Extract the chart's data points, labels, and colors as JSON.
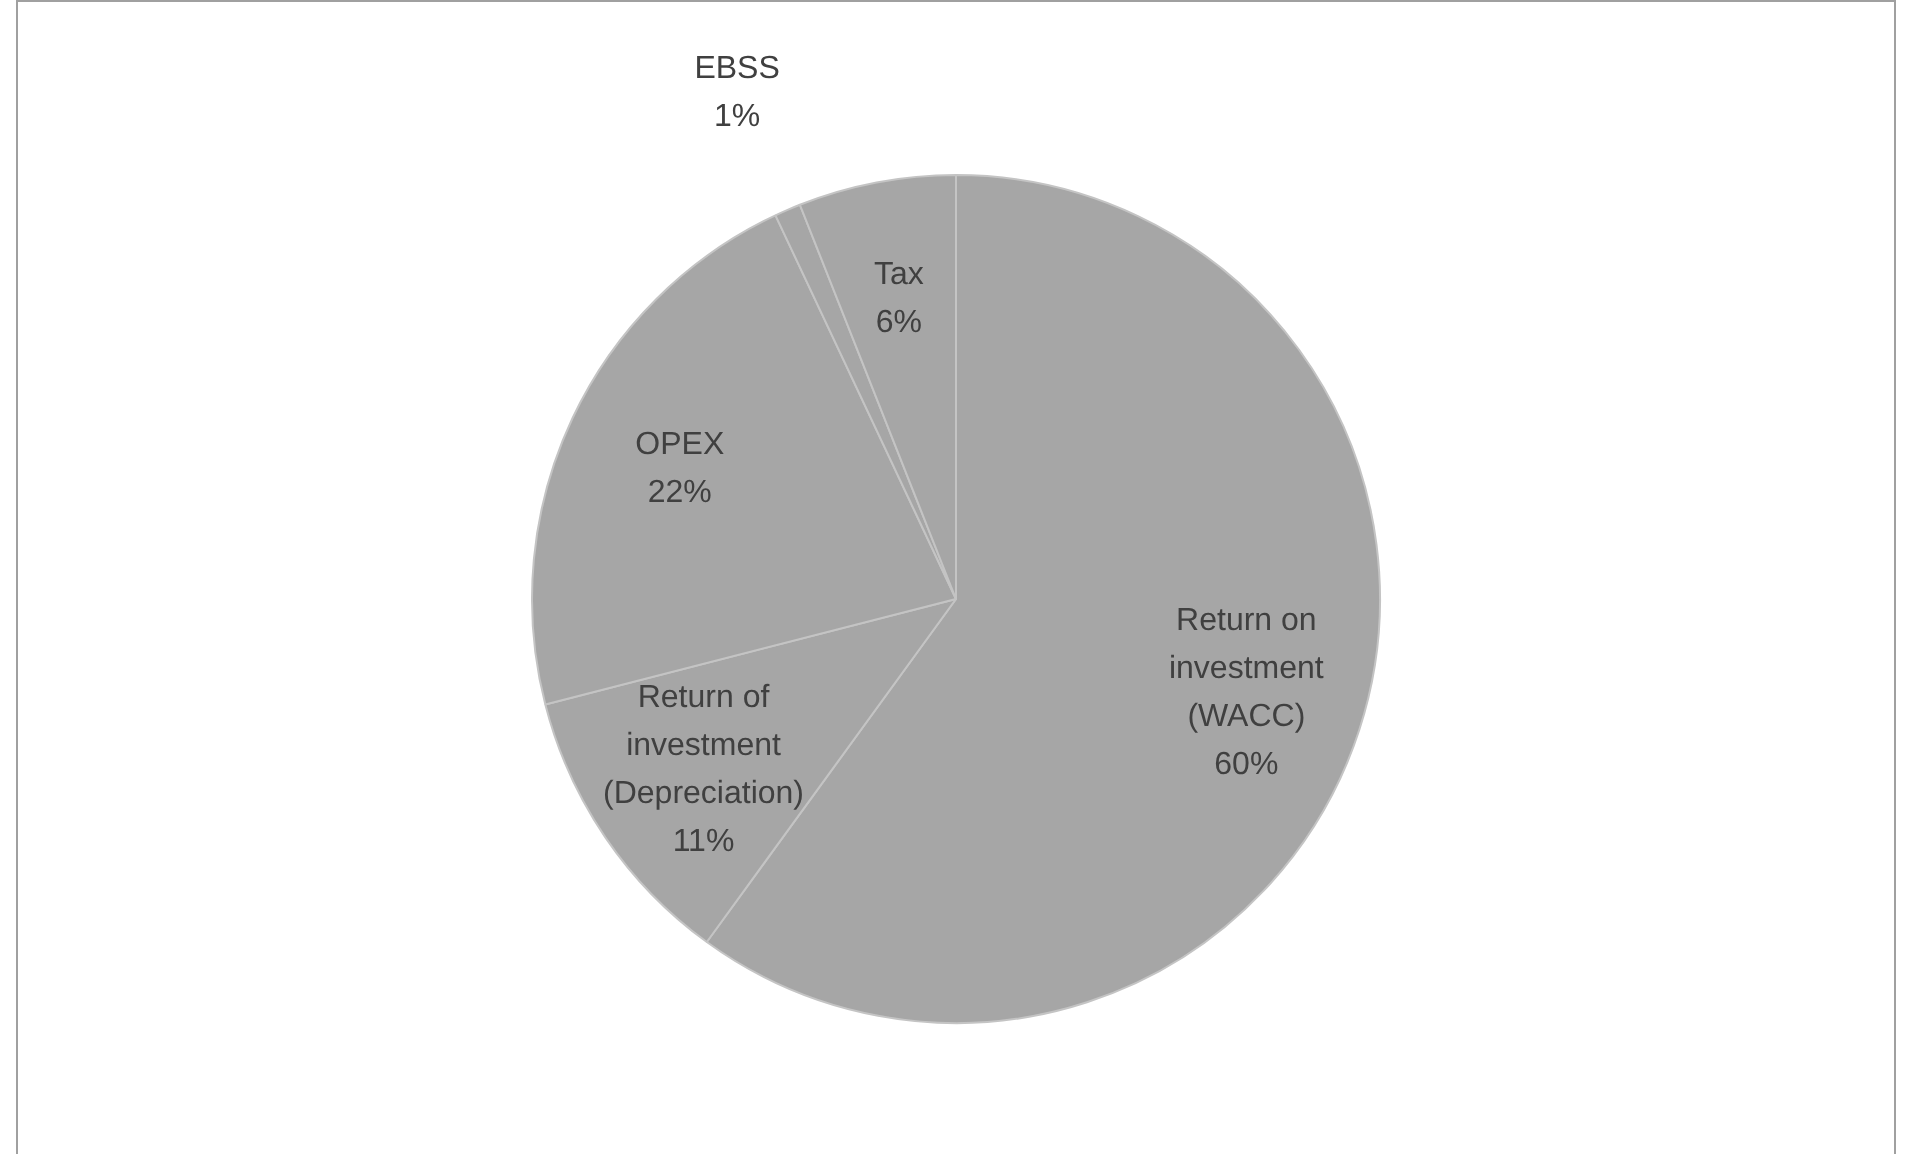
{
  "chart_data": {
    "type": "pie",
    "categories": [
      "Return on investment (WACC)",
      "Return of investment (Depreciation)",
      "OPEX",
      "EBSS",
      "Tax"
    ],
    "values": [
      60,
      11,
      22,
      1,
      6
    ],
    "colors": [
      "#a6a6a6",
      "#a6a6a6",
      "#a6a6a6",
      "#a6a6a6",
      "#a6a6a6"
    ],
    "value_labels": [
      "60%",
      "11%",
      "22%",
      "1%",
      "6%"
    ],
    "legend": false
  }
}
